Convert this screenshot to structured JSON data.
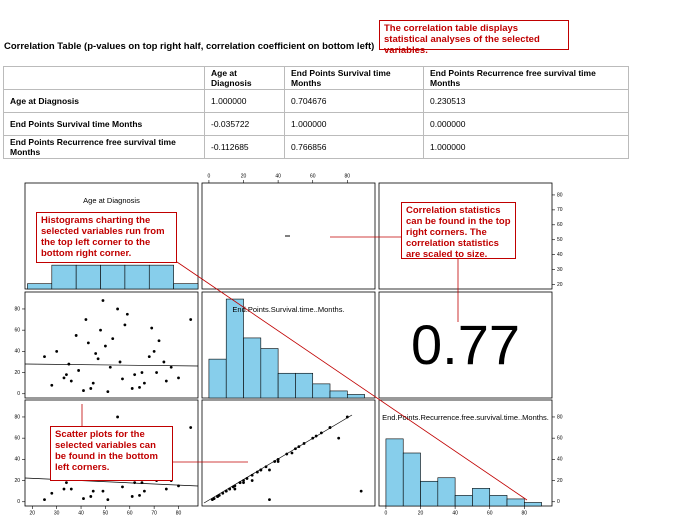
{
  "annotations": [
    "The correlation table displays statistical analyses of the selected variables.",
    "Histograms charting the selected variables run from the top left corner to the bottom right corner.",
    "Correlation statistics can be found in the top right corners. The correlation statistics are scaled to size.",
    "Scatter plots for the selected variables can be found in the bottom left corners."
  ],
  "table": {
    "title": "Correlation Table (p-values on top right half, correlation coefficient on bottom left)",
    "columns": [
      "Age at Diagnosis",
      "End Points Survival time Months",
      "End Points Recurrence free survival time Months"
    ],
    "rows": [
      {
        "label": "Age at Diagnosis",
        "values": [
          "1.000000",
          "0.704676",
          "0.230513"
        ]
      },
      {
        "label": "End Points Survival time Months",
        "values": [
          "-0.035722",
          "1.000000",
          "0.000000"
        ]
      },
      {
        "label": "End Points Recurrence free survival time Months",
        "values": [
          "-0.112685",
          "0.766856",
          "1.000000"
        ]
      }
    ]
  },
  "chart_data": {
    "type": "pairs",
    "variable_labels": [
      "Age at Diagnosis",
      "End.Points.Survival.time..Months.",
      "End.Points.Recurrence.free.survival.time..Months."
    ],
    "correlation_label": "0.77",
    "lims": [
      [
        17,
        88
      ],
      [
        -4,
        96
      ],
      [
        -4,
        96
      ]
    ],
    "ticks": [
      [
        20,
        30,
        40,
        50,
        60,
        70,
        80
      ],
      [
        0,
        20,
        40,
        60,
        80
      ],
      [
        0,
        20,
        40,
        60,
        80
      ]
    ],
    "histograms": [
      {
        "bins": [
          18,
          28,
          38,
          48,
          58,
          68,
          78,
          88
        ],
        "counts": [
          2,
          9,
          9,
          9,
          9,
          9,
          2
        ],
        "ylim": [
          0,
          40
        ]
      },
      {
        "bins": [
          0,
          10,
          20,
          30,
          40,
          50,
          60,
          70,
          80,
          90
        ],
        "counts": [
          11,
          28,
          17,
          14,
          7,
          7,
          4,
          2,
          1
        ],
        "ylim": [
          0,
          30
        ]
      },
      {
        "bins": [
          0,
          10,
          20,
          30,
          40,
          50,
          60,
          70,
          80,
          90
        ],
        "counts": [
          19,
          15,
          7,
          8,
          3,
          5,
          3,
          2,
          1
        ],
        "ylim": [
          0,
          30
        ]
      }
    ],
    "points": {
      "age": [
        45,
        52,
        38,
        61,
        70,
        33,
        48,
        56,
        65,
        42,
        75,
        28,
        50,
        58,
        39,
        68,
        44,
        72,
        35,
        62,
        55,
        47,
        80,
        30,
        66,
        53,
        41,
        77,
        59,
        36,
        49,
        64,
        46,
        71,
        57,
        43,
        69,
        51,
        34,
        74,
        85,
        25
      ],
      "survival": [
        10,
        25,
        55,
        5,
        40,
        15,
        60,
        30,
        20,
        70,
        12,
        8,
        45,
        65,
        22,
        35,
        5,
        50,
        28,
        18,
        80,
        33,
        15,
        40,
        10,
        52,
        3,
        25,
        75,
        12,
        88,
        6,
        38,
        20,
        14,
        48,
        62,
        2,
        18,
        30,
        70,
        35
      ],
      "recurrence": [
        10,
        25,
        55,
        5,
        40,
        12,
        60,
        30,
        18,
        70,
        12,
        8,
        45,
        65,
        22,
        30,
        5,
        50,
        28,
        18,
        80,
        33,
        15,
        38,
        10,
        52,
        3,
        20,
        60,
        12,
        10,
        6,
        38,
        20,
        14,
        46,
        62,
        2,
        18,
        30,
        70,
        2
      ]
    }
  }
}
